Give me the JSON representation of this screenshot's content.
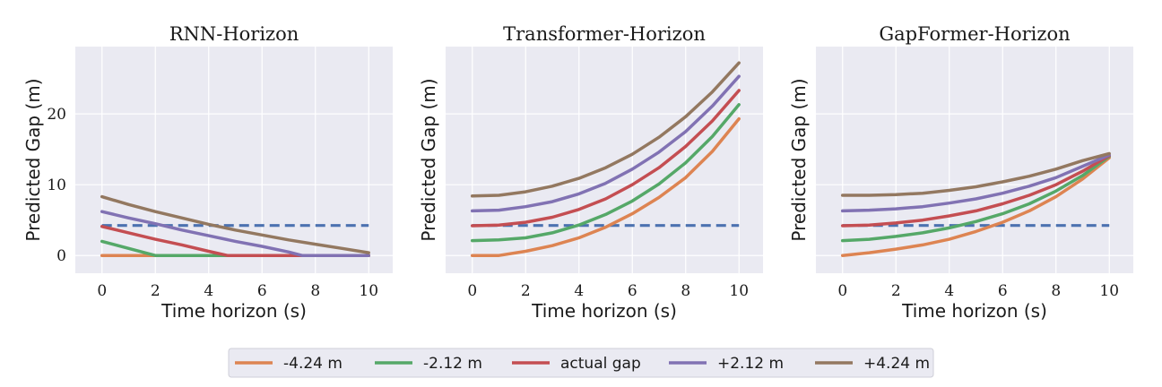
{
  "chart_data": [
    {
      "type": "line",
      "title": "RNN-Horizon",
      "xlabel": "Time horizon (s)",
      "ylabel": "Predicted Gap (m)",
      "xlim": [
        -1,
        10.9
      ],
      "ylim": [
        -2.5,
        29.5
      ],
      "xticks": [
        0,
        2,
        4,
        6,
        8,
        10
      ],
      "yticks": [
        0,
        10,
        20
      ],
      "grid": true,
      "reference_line": {
        "y": 4.24,
        "x": [
          0,
          10
        ],
        "color": "#4c72b0",
        "style": "dashed"
      },
      "series": [
        {
          "name": "-4.24 m",
          "color": "#dd8452",
          "x": [
            0,
            1,
            2,
            3,
            4,
            5,
            6,
            7,
            8,
            9,
            10
          ],
          "y": [
            0,
            0,
            0,
            0,
            0,
            0,
            0,
            0,
            0,
            0,
            0
          ]
        },
        {
          "name": "-2.12 m",
          "color": "#55a868",
          "x": [
            0,
            1,
            2,
            3,
            4,
            5,
            6,
            7,
            8,
            9,
            10
          ],
          "y": [
            2.0,
            1.0,
            0,
            0,
            0,
            0,
            0,
            0,
            0,
            0,
            0
          ]
        },
        {
          "name": "actual gap",
          "color": "#c44e52",
          "x": [
            0,
            1,
            2,
            3,
            4,
            4.7,
            5,
            6,
            7,
            8,
            9,
            10
          ],
          "y": [
            4.1,
            3.2,
            2.3,
            1.5,
            0.6,
            0,
            0,
            0,
            0,
            0,
            0,
            0
          ]
        },
        {
          "name": "+2.12 m",
          "color": "#8172b3",
          "x": [
            0,
            1,
            2,
            3,
            4,
            5,
            6,
            7,
            7.5,
            8,
            9,
            10
          ],
          "y": [
            6.2,
            5.3,
            4.5,
            3.6,
            2.8,
            2.0,
            1.3,
            0.5,
            0,
            0,
            0,
            0
          ]
        },
        {
          "name": "+4.24 m",
          "color": "#937860",
          "x": [
            0,
            1,
            2,
            3,
            4,
            5,
            6,
            7,
            8,
            9,
            10
          ],
          "y": [
            8.3,
            7.2,
            6.2,
            5.3,
            4.4,
            3.6,
            2.9,
            2.2,
            1.6,
            1.0,
            0.4
          ]
        }
      ]
    },
    {
      "type": "line",
      "title": "Transformer-Horizon",
      "xlabel": "Time horizon (s)",
      "ylabel": "Predicted Gap (m)",
      "xlim": [
        -1,
        10.9
      ],
      "ylim": [
        -2.5,
        29.5
      ],
      "xticks": [
        0,
        2,
        4,
        6,
        8,
        10
      ],
      "yticks": [
        0,
        10,
        20
      ],
      "grid": true,
      "reference_line": {
        "y": 4.24,
        "x": [
          0,
          10
        ],
        "color": "#4c72b0",
        "style": "dashed"
      },
      "series": [
        {
          "name": "-4.24 m",
          "color": "#dd8452",
          "x": [
            0,
            1,
            2,
            3,
            4,
            5,
            6,
            7,
            8,
            9,
            10
          ],
          "y": [
            0,
            0,
            0.6,
            1.4,
            2.5,
            4.0,
            5.9,
            8.2,
            11.0,
            14.7,
            19.3
          ]
        },
        {
          "name": "-2.12 m",
          "color": "#55a868",
          "x": [
            0,
            1,
            2,
            3,
            4,
            5,
            6,
            7,
            8,
            9,
            10
          ],
          "y": [
            2.1,
            2.2,
            2.5,
            3.2,
            4.3,
            5.8,
            7.7,
            10.1,
            13.1,
            16.8,
            21.3
          ]
        },
        {
          "name": "actual gap",
          "color": "#c44e52",
          "x": [
            0,
            1,
            2,
            3,
            4,
            5,
            6,
            7,
            8,
            9,
            10
          ],
          "y": [
            4.2,
            4.3,
            4.7,
            5.4,
            6.5,
            8.0,
            10.0,
            12.4,
            15.4,
            19.0,
            23.3
          ]
        },
        {
          "name": "+2.12 m",
          "color": "#8172b3",
          "x": [
            0,
            1,
            2,
            3,
            4,
            5,
            6,
            7,
            8,
            9,
            10
          ],
          "y": [
            6.3,
            6.4,
            6.9,
            7.6,
            8.7,
            10.2,
            12.2,
            14.6,
            17.5,
            21.1,
            25.3
          ]
        },
        {
          "name": "+4.24 m",
          "color": "#937860",
          "x": [
            0,
            1,
            2,
            3,
            4,
            5,
            6,
            7,
            8,
            9,
            10
          ],
          "y": [
            8.4,
            8.5,
            9.0,
            9.8,
            10.9,
            12.4,
            14.3,
            16.7,
            19.6,
            23.1,
            27.2
          ]
        }
      ]
    },
    {
      "type": "line",
      "title": "GapFormer-Horizon",
      "xlabel": "Time horizon (s)",
      "ylabel": "Predicted Gap (m)",
      "xlim": [
        -1,
        10.9
      ],
      "ylim": [
        -2.5,
        29.5
      ],
      "xticks": [
        0,
        2,
        4,
        6,
        8,
        10
      ],
      "yticks": [
        0,
        10,
        20
      ],
      "grid": true,
      "reference_line": {
        "y": 4.24,
        "x": [
          0,
          10
        ],
        "color": "#4c72b0",
        "style": "dashed"
      },
      "series": [
        {
          "name": "-4.24 m",
          "color": "#dd8452",
          "x": [
            0,
            1,
            2,
            3,
            4,
            5,
            6,
            7,
            8,
            9,
            10
          ],
          "y": [
            0,
            0.4,
            0.9,
            1.5,
            2.3,
            3.4,
            4.7,
            6.3,
            8.3,
            10.8,
            13.8
          ]
        },
        {
          "name": "-2.12 m",
          "color": "#55a868",
          "x": [
            0,
            1,
            2,
            3,
            4,
            5,
            6,
            7,
            8,
            9,
            10
          ],
          "y": [
            2.1,
            2.3,
            2.7,
            3.2,
            3.9,
            4.8,
            5.9,
            7.3,
            9.1,
            11.3,
            14.0
          ]
        },
        {
          "name": "actual gap",
          "color": "#c44e52",
          "x": [
            0,
            1,
            2,
            3,
            4,
            5,
            6,
            7,
            8,
            9,
            10
          ],
          "y": [
            4.2,
            4.3,
            4.6,
            5.0,
            5.6,
            6.3,
            7.3,
            8.5,
            10.0,
            11.9,
            14.1
          ]
        },
        {
          "name": "+2.12 m",
          "color": "#8172b3",
          "x": [
            0,
            1,
            2,
            3,
            4,
            5,
            6,
            7,
            8,
            9,
            10
          ],
          "y": [
            6.3,
            6.4,
            6.6,
            6.9,
            7.4,
            8.0,
            8.8,
            9.8,
            11.0,
            12.6,
            14.2
          ]
        },
        {
          "name": "+4.24 m",
          "color": "#937860",
          "x": [
            0,
            1,
            2,
            3,
            4,
            5,
            6,
            7,
            8,
            9,
            10
          ],
          "y": [
            8.5,
            8.5,
            8.6,
            8.8,
            9.2,
            9.7,
            10.4,
            11.2,
            12.2,
            13.4,
            14.4
          ]
        }
      ]
    }
  ],
  "legend": {
    "placement": "bottom-center",
    "entries": [
      {
        "label": "-4.24 m",
        "color": "#dd8452"
      },
      {
        "label": "-2.12 m",
        "color": "#55a868"
      },
      {
        "label": "actual gap",
        "color": "#c44e52"
      },
      {
        "label": "+2.12 m",
        "color": "#8172b3"
      },
      {
        "label": "+4.24 m",
        "color": "#937860"
      }
    ]
  },
  "style": {
    "plot_background": "#eaeaf2",
    "grid_color": "#ffffff",
    "text_color": "#1a1a1a"
  }
}
